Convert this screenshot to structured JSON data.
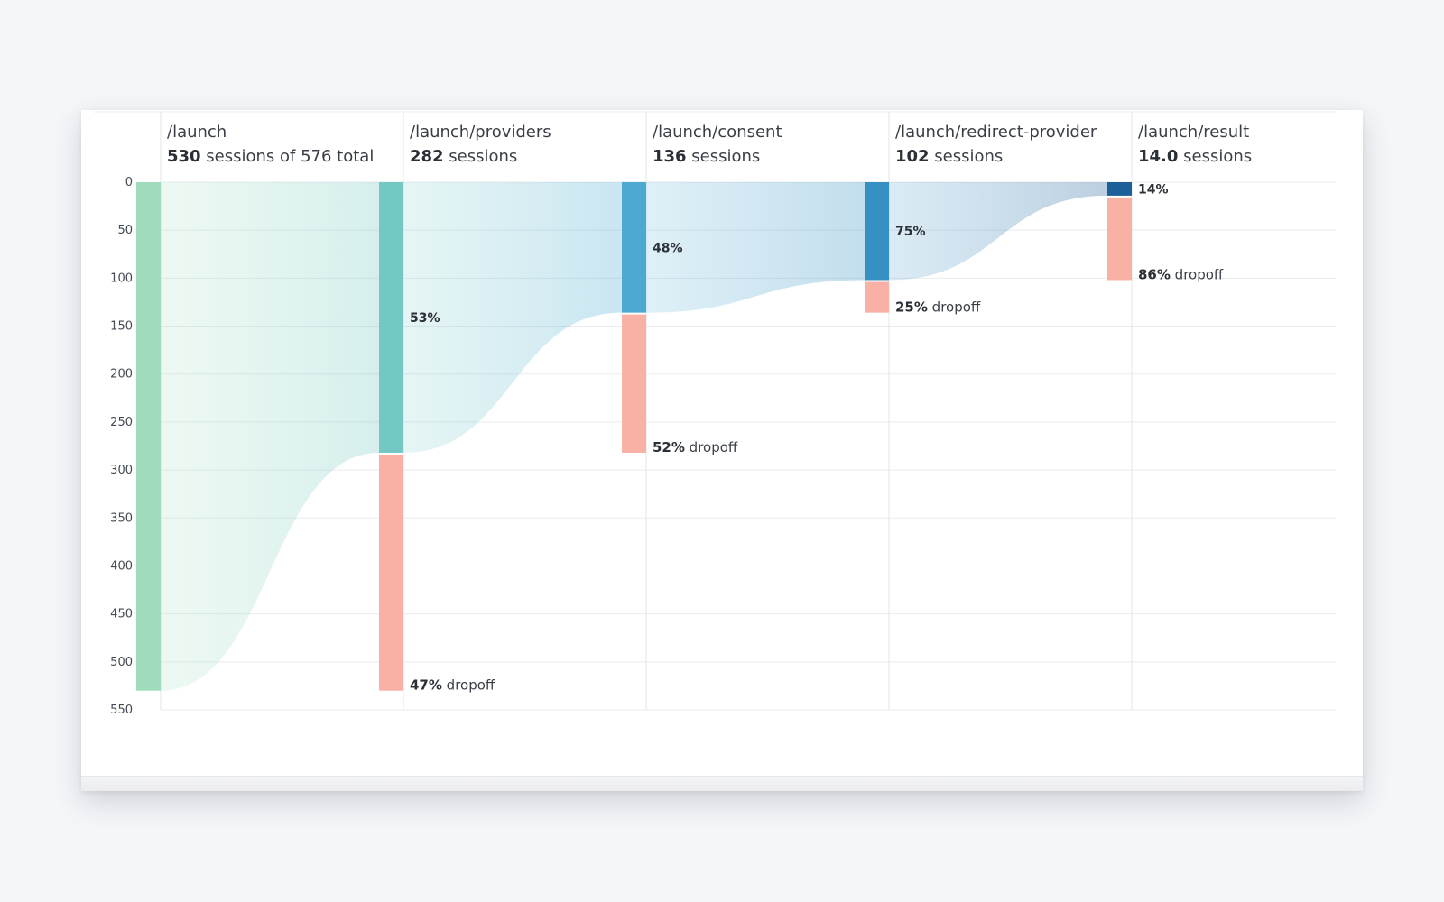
{
  "chart_data": {
    "type": "funnel",
    "ylim": [
      0,
      550
    ],
    "y_ticks": [
      0,
      50,
      100,
      150,
      200,
      250,
      300,
      350,
      400,
      450,
      500,
      550
    ],
    "grid": true,
    "steps": [
      {
        "path": "/launch",
        "sessions": 530,
        "sessions_text": "530",
        "sessions_suffix": " sessions of 576 total",
        "continue_pct": "",
        "dropoff_pct": "",
        "color": "#9fdcbb"
      },
      {
        "path": "/launch/providers",
        "sessions": 282,
        "sessions_text": "282",
        "sessions_suffix": " sessions",
        "continue_pct": "53%",
        "dropoff_pct": "47%",
        "color": "#74c8c4"
      },
      {
        "path": "/launch/consent",
        "sessions": 136,
        "sessions_text": "136",
        "sessions_suffix": " sessions",
        "continue_pct": "48%",
        "dropoff_pct": "52%",
        "color": "#4caad2"
      },
      {
        "path": "/launch/redirect-provider",
        "sessions": 102,
        "sessions_text": "102",
        "sessions_suffix": " sessions",
        "continue_pct": "75%",
        "dropoff_pct": "25%",
        "color": "#3590c3"
      },
      {
        "path": "/launch/result",
        "sessions": 14,
        "sessions_text": "14.0",
        "sessions_suffix": " sessions",
        "continue_pct": "14%",
        "dropoff_pct": "86%",
        "color": "#1d5f99"
      }
    ],
    "dropoff_word": " dropoff",
    "dropoff_color": "#f9b1a6"
  }
}
